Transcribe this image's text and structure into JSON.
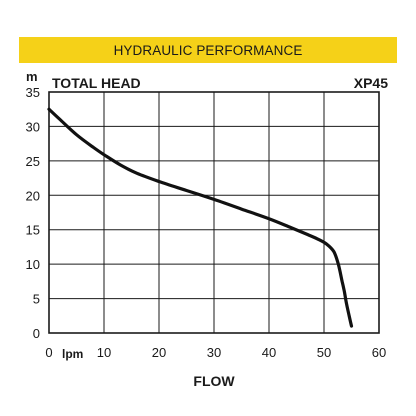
{
  "banner": {
    "title": "HYDRAULIC PERFORMANCE"
  },
  "chart_data": {
    "type": "line",
    "title": "",
    "ylabel_unit": "m",
    "ylabel": "TOTAL HEAD",
    "model": "XP45",
    "xlabel": "FLOW",
    "xlabel_unit": "lpm",
    "xlim": [
      0,
      60
    ],
    "ylim": [
      0,
      35
    ],
    "xticks": [
      0,
      10,
      20,
      30,
      40,
      50,
      60
    ],
    "yticks": [
      0,
      5,
      10,
      15,
      20,
      25,
      30,
      35
    ],
    "grid": true,
    "series": [
      {
        "x": [
          0,
          2,
          5,
          8,
          10,
          13,
          16,
          20,
          25,
          30,
          35,
          40,
          44,
          47,
          49,
          50.5,
          51.8,
          52.6,
          53.3,
          53.7,
          54.1,
          54.6,
          55.0
        ],
        "y": [
          32.5,
          31.0,
          28.8,
          27.0,
          25.9,
          24.4,
          23.2,
          22.0,
          20.7,
          19.4,
          18.0,
          16.6,
          15.3,
          14.3,
          13.6,
          12.9,
          11.8,
          10.0,
          7.5,
          6.0,
          4.2,
          2.4,
          1.0
        ]
      }
    ]
  }
}
